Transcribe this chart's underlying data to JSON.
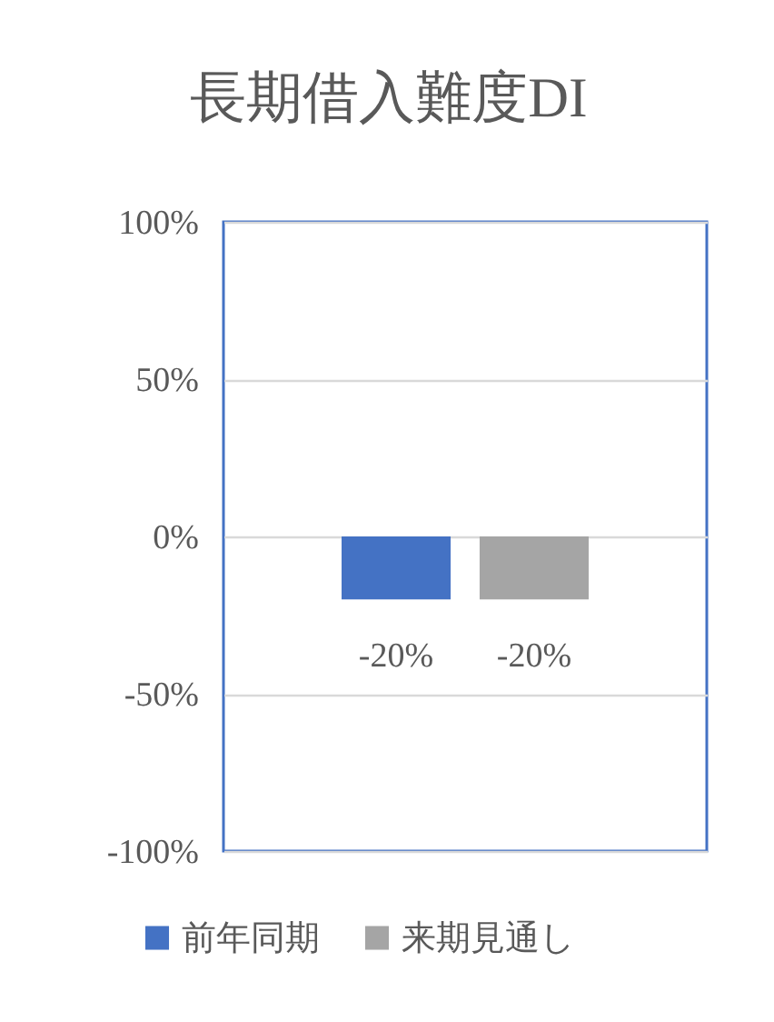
{
  "chart_data": {
    "type": "bar",
    "title": "長期借入難度DI",
    "categories": [
      null
    ],
    "series": [
      {
        "name": "前年同期",
        "color": "#4472c4",
        "values": [
          -20
        ],
        "value_labels": [
          "-20%"
        ]
      },
      {
        "name": "来期見通し",
        "color": "#a5a5a5",
        "values": [
          -20
        ],
        "value_labels": [
          "-20%"
        ]
      }
    ],
    "ylim": [
      -100,
      100
    ],
    "yticks": [
      {
        "value": -100,
        "label": "-100%"
      },
      {
        "value": -50,
        "label": "-50%"
      },
      {
        "value": 0,
        "label": "0%"
      },
      {
        "value": 50,
        "label": "50%"
      },
      {
        "value": 100,
        "label": "100%"
      }
    ],
    "grid": "y",
    "legend": "bottom"
  }
}
